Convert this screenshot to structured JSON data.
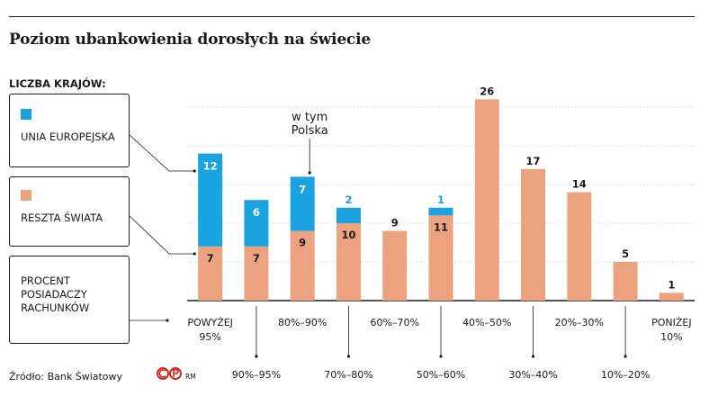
{
  "title": "Poziom ubankowienia dorosłych na świecie",
  "legend": {
    "heading": "LICZBA KRAJÓW:",
    "eu_label": "UNIA EUROPEJSKA",
    "rest_label": "RESZTA ŚWIATA",
    "pct_label": "PROCENT POSIADACZY RACHUNKÓW"
  },
  "colors": {
    "eu": "#1aa3e0",
    "rest": "#eca27e"
  },
  "source": "Źródło: Bank Światowy",
  "rm": "RM",
  "chart_data": {
    "type": "bar",
    "stacked": true,
    "ylim": [
      0,
      28
    ],
    "grid": true,
    "categories": [
      "POWYŻEJ 95%",
      "90%–95%",
      "80%–90%",
      "70%–80%",
      "60%–70%",
      "50%–60%",
      "40%–50%",
      "30%–40%",
      "20%–30%",
      "10%–20%",
      "PONIŻEJ 10%"
    ],
    "category_lines": [
      [
        "POWYŻEJ",
        "95%"
      ],
      [
        "90%–95%"
      ],
      [
        "80%–90%"
      ],
      [
        "70%–80%"
      ],
      [
        "60%–70%"
      ],
      [
        "50%–60%"
      ],
      [
        "40%–50%"
      ],
      [
        "30%–40%"
      ],
      [
        "20%–30%"
      ],
      [
        "10%–20%"
      ],
      [
        "PONIŻEJ",
        "10%"
      ]
    ],
    "series": [
      {
        "name": "RESZTA ŚWIATA",
        "values": [
          7,
          7,
          9,
          10,
          9,
          11,
          26,
          17,
          14,
          5,
          1
        ]
      },
      {
        "name": "UNIA EUROPEJSKA",
        "values": [
          12,
          6,
          7,
          2,
          0,
          1,
          0,
          0,
          0,
          0,
          0
        ]
      }
    ],
    "annotation": {
      "text_lines": [
        "w tym",
        "Polska"
      ],
      "category": "80%–90%"
    }
  }
}
